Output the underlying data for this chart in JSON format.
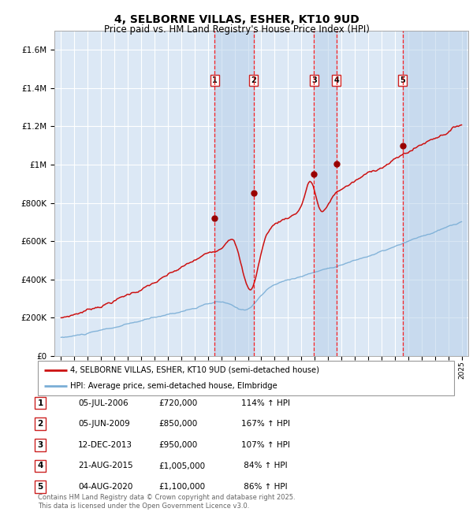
{
  "title": "4, SELBORNE VILLAS, ESHER, KT10 9UD",
  "subtitle": "Price paid vs. HM Land Registry's House Price Index (HPI)",
  "title_fontsize": 10,
  "subtitle_fontsize": 8.5,
  "background_color": "#ffffff",
  "plot_bg_color": "#dce8f5",
  "grid_color": "#ffffff",
  "hpi_color": "#7aaed6",
  "price_color": "#cc1111",
  "sale_marker_color": "#990000",
  "sale_dates_num": [
    2006.5,
    2009.42,
    2013.95,
    2015.63,
    2020.58
  ],
  "sale_prices": [
    720000,
    850000,
    950000,
    1005000,
    1100000
  ],
  "sale_labels": [
    "1",
    "2",
    "3",
    "4",
    "5"
  ],
  "ylim": [
    0,
    1700000
  ],
  "yticks": [
    0,
    200000,
    400000,
    600000,
    800000,
    1000000,
    1200000,
    1400000,
    1600000
  ],
  "ytick_labels": [
    "£0",
    "£200K",
    "£400K",
    "£600K",
    "£800K",
    "£1M",
    "£1.2M",
    "£1.4M",
    "£1.6M"
  ],
  "legend_entries": [
    "4, SELBORNE VILLAS, ESHER, KT10 9UD (semi-detached house)",
    "HPI: Average price, semi-detached house, Elmbridge"
  ],
  "table_rows": [
    [
      "1",
      "05-JUL-2006",
      "£720,000",
      "114% ↑ HPI"
    ],
    [
      "2",
      "05-JUN-2009",
      "£850,000",
      "167% ↑ HPI"
    ],
    [
      "3",
      "12-DEC-2013",
      "£950,000",
      "107% ↑ HPI"
    ],
    [
      "4",
      "21-AUG-2015",
      "£1,005,000",
      " 84% ↑ HPI"
    ],
    [
      "5",
      "04-AUG-2020",
      "£1,100,000",
      " 86% ↑ HPI"
    ]
  ],
  "footer_text": "Contains HM Land Registry data © Crown copyright and database right 2025.\nThis data is licensed under the Open Government Licence v3.0."
}
